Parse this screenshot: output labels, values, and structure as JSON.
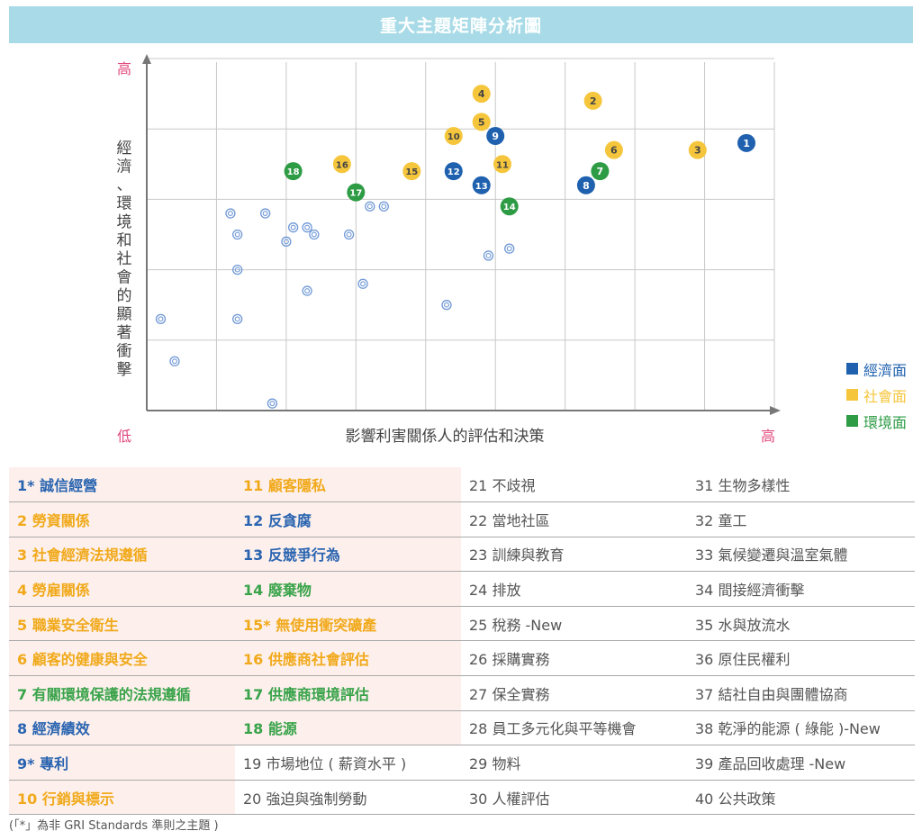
{
  "header": {
    "title": "重大主題矩陣分析圖"
  },
  "chart_data": {
    "type": "scatter",
    "title": "重大主題矩陣分析圖",
    "xlabel": "影響利害關係人的評估和決策",
    "ylabel": "經濟、環境和社會的顯著衝擊",
    "x_low_label": "低",
    "x_high_label": "高",
    "y_high_label": "高",
    "axes_zero_label": "低",
    "xlim": [
      0,
      9
    ],
    "ylim": [
      0,
      5
    ],
    "grid": true,
    "legend_placement": "right",
    "colors": {
      "economic": "#1f61ae",
      "social": "#f5c63c",
      "environmental": "#2e9b45",
      "minor": "#6f98d6"
    },
    "series": [
      {
        "name": "經濟面",
        "key": "economic",
        "points": [
          {
            "label": "1",
            "x": 8.6,
            "y": 3.8
          },
          {
            "label": "8",
            "x": 6.3,
            "y": 3.2
          },
          {
            "label": "9",
            "x": 5.0,
            "y": 3.9
          },
          {
            "label": "12",
            "x": 4.4,
            "y": 3.4
          },
          {
            "label": "13",
            "x": 4.8,
            "y": 3.2
          }
        ]
      },
      {
        "name": "社會面",
        "key": "social",
        "points": [
          {
            "label": "2",
            "x": 6.4,
            "y": 4.4
          },
          {
            "label": "3",
            "x": 7.9,
            "y": 3.7
          },
          {
            "label": "4",
            "x": 4.8,
            "y": 4.5
          },
          {
            "label": "5",
            "x": 4.8,
            "y": 4.1
          },
          {
            "label": "6",
            "x": 6.7,
            "y": 3.7
          },
          {
            "label": "10",
            "x": 4.4,
            "y": 3.9
          },
          {
            "label": "11",
            "x": 5.1,
            "y": 3.5
          },
          {
            "label": "15",
            "x": 3.8,
            "y": 3.4
          },
          {
            "label": "16",
            "x": 2.8,
            "y": 3.5
          }
        ]
      },
      {
        "name": "環境面",
        "key": "environmental",
        "points": [
          {
            "label": "7",
            "x": 6.5,
            "y": 3.4
          },
          {
            "label": "14",
            "x": 5.2,
            "y": 2.9
          },
          {
            "label": "17",
            "x": 3.0,
            "y": 3.1
          },
          {
            "label": "18",
            "x": 2.1,
            "y": 3.4
          }
        ]
      }
    ],
    "minor_points": [
      {
        "x": 0.2,
        "y": 1.3
      },
      {
        "x": 0.4,
        "y": 0.7
      },
      {
        "x": 1.2,
        "y": 2.8
      },
      {
        "x": 1.3,
        "y": 2.5
      },
      {
        "x": 1.3,
        "y": 2.0
      },
      {
        "x": 1.3,
        "y": 1.3
      },
      {
        "x": 1.7,
        "y": 2.8
      },
      {
        "x": 1.8,
        "y": 0.1
      },
      {
        "x": 2.0,
        "y": 2.4
      },
      {
        "x": 2.1,
        "y": 2.6
      },
      {
        "x": 2.3,
        "y": 2.6
      },
      {
        "x": 2.3,
        "y": 1.7
      },
      {
        "x": 2.4,
        "y": 2.5
      },
      {
        "x": 2.9,
        "y": 2.5
      },
      {
        "x": 3.1,
        "y": 1.8
      },
      {
        "x": 3.2,
        "y": 2.9
      },
      {
        "x": 3.4,
        "y": 2.9
      },
      {
        "x": 4.3,
        "y": 1.5
      },
      {
        "x": 4.9,
        "y": 2.2
      },
      {
        "x": 5.2,
        "y": 2.3
      }
    ]
  },
  "legend": [
    {
      "label": "經濟面",
      "color": "#1f61ae"
    },
    {
      "label": "社會面",
      "color": "#f5c63c"
    },
    {
      "label": "環境面",
      "color": "#2e9b45"
    }
  ],
  "table": {
    "rows": [
      [
        {
          "text": "1* 誠信經營",
          "color": "#2a64b0",
          "bold": true
        },
        {
          "text": "11 顧客隱私",
          "color": "#f1a91b",
          "bold": true
        },
        {
          "text": "21 不歧視",
          "color": "#555555",
          "bold": false
        },
        {
          "text": "31 生物多樣性",
          "color": "#555555",
          "bold": false
        }
      ],
      [
        {
          "text": "2 勞資關係",
          "color": "#f1a91b",
          "bold": true
        },
        {
          "text": "12 反貪腐",
          "color": "#2a64b0",
          "bold": true
        },
        {
          "text": "22 當地社區",
          "color": "#555555",
          "bold": false
        },
        {
          "text": "32 童工",
          "color": "#555555",
          "bold": false
        }
      ],
      [
        {
          "text": "3 社會經濟法規遵循",
          "color": "#f1a91b",
          "bold": true
        },
        {
          "text": "13 反競爭行為",
          "color": "#2a64b0",
          "bold": true
        },
        {
          "text": "23 訓練與教育",
          "color": "#555555",
          "bold": false
        },
        {
          "text": "33 氣候變遷與溫室氣體",
          "color": "#555555",
          "bold": false
        }
      ],
      [
        {
          "text": "4 勞雇關係",
          "color": "#f1a91b",
          "bold": true
        },
        {
          "text": "14 廢棄物",
          "color": "#39a34a",
          "bold": true
        },
        {
          "text": "24 排放",
          "color": "#555555",
          "bold": false
        },
        {
          "text": "34 間接經濟衝擊",
          "color": "#555555",
          "bold": false
        }
      ],
      [
        {
          "text": "5 職業安全衛生",
          "color": "#f1a91b",
          "bold": true
        },
        {
          "text": "15* 無使用衝突礦產",
          "color": "#f1a91b",
          "bold": true
        },
        {
          "text": "25 稅務 -New",
          "color": "#555555",
          "bold": false
        },
        {
          "text": "35 水與放流水",
          "color": "#555555",
          "bold": false
        }
      ],
      [
        {
          "text": "6 顧客的健康與安全",
          "color": "#f1a91b",
          "bold": true
        },
        {
          "text": "16 供應商社會評估",
          "color": "#f1a91b",
          "bold": true
        },
        {
          "text": "26 採購實務",
          "color": "#555555",
          "bold": false
        },
        {
          "text": "36 原住民權利",
          "color": "#555555",
          "bold": false
        }
      ],
      [
        {
          "text": "7 有關環境保護的法規遵循",
          "color": "#39a34a",
          "bold": true
        },
        {
          "text": "17 供應商環境評估",
          "color": "#39a34a",
          "bold": true
        },
        {
          "text": "27 保全實務",
          "color": "#555555",
          "bold": false
        },
        {
          "text": "37 結社自由與團體協商",
          "color": "#555555",
          "bold": false
        }
      ],
      [
        {
          "text": "8 經濟績效",
          "color": "#2a64b0",
          "bold": true
        },
        {
          "text": "18 能源",
          "color": "#39a34a",
          "bold": true
        },
        {
          "text": "28 員工多元化與平等機會",
          "color": "#555555",
          "bold": false
        },
        {
          "text": "38 乾淨的能源 ( 綠能 )-New",
          "color": "#555555",
          "bold": false
        }
      ],
      [
        {
          "text": "9* 專利",
          "color": "#2a64b0",
          "bold": true
        },
        {
          "text": "19 市場地位 ( 薪資水平 )",
          "color": "#555555",
          "bold": false
        },
        {
          "text": "29 物料",
          "color": "#555555",
          "bold": false
        },
        {
          "text": "39 產品回收處理 -New",
          "color": "#555555",
          "bold": false
        }
      ],
      [
        {
          "text": "10 行銷與標示",
          "color": "#f1a91b",
          "bold": true
        },
        {
          "text": "20 強迫與強制勞動",
          "color": "#555555",
          "bold": false
        },
        {
          "text": "30 人權評估",
          "color": "#555555",
          "bold": false
        },
        {
          "text": "40 公共政策",
          "color": "#555555",
          "bold": false
        }
      ]
    ]
  },
  "footnote": "(「*」為非 GRI Standards 準則之主題 )"
}
